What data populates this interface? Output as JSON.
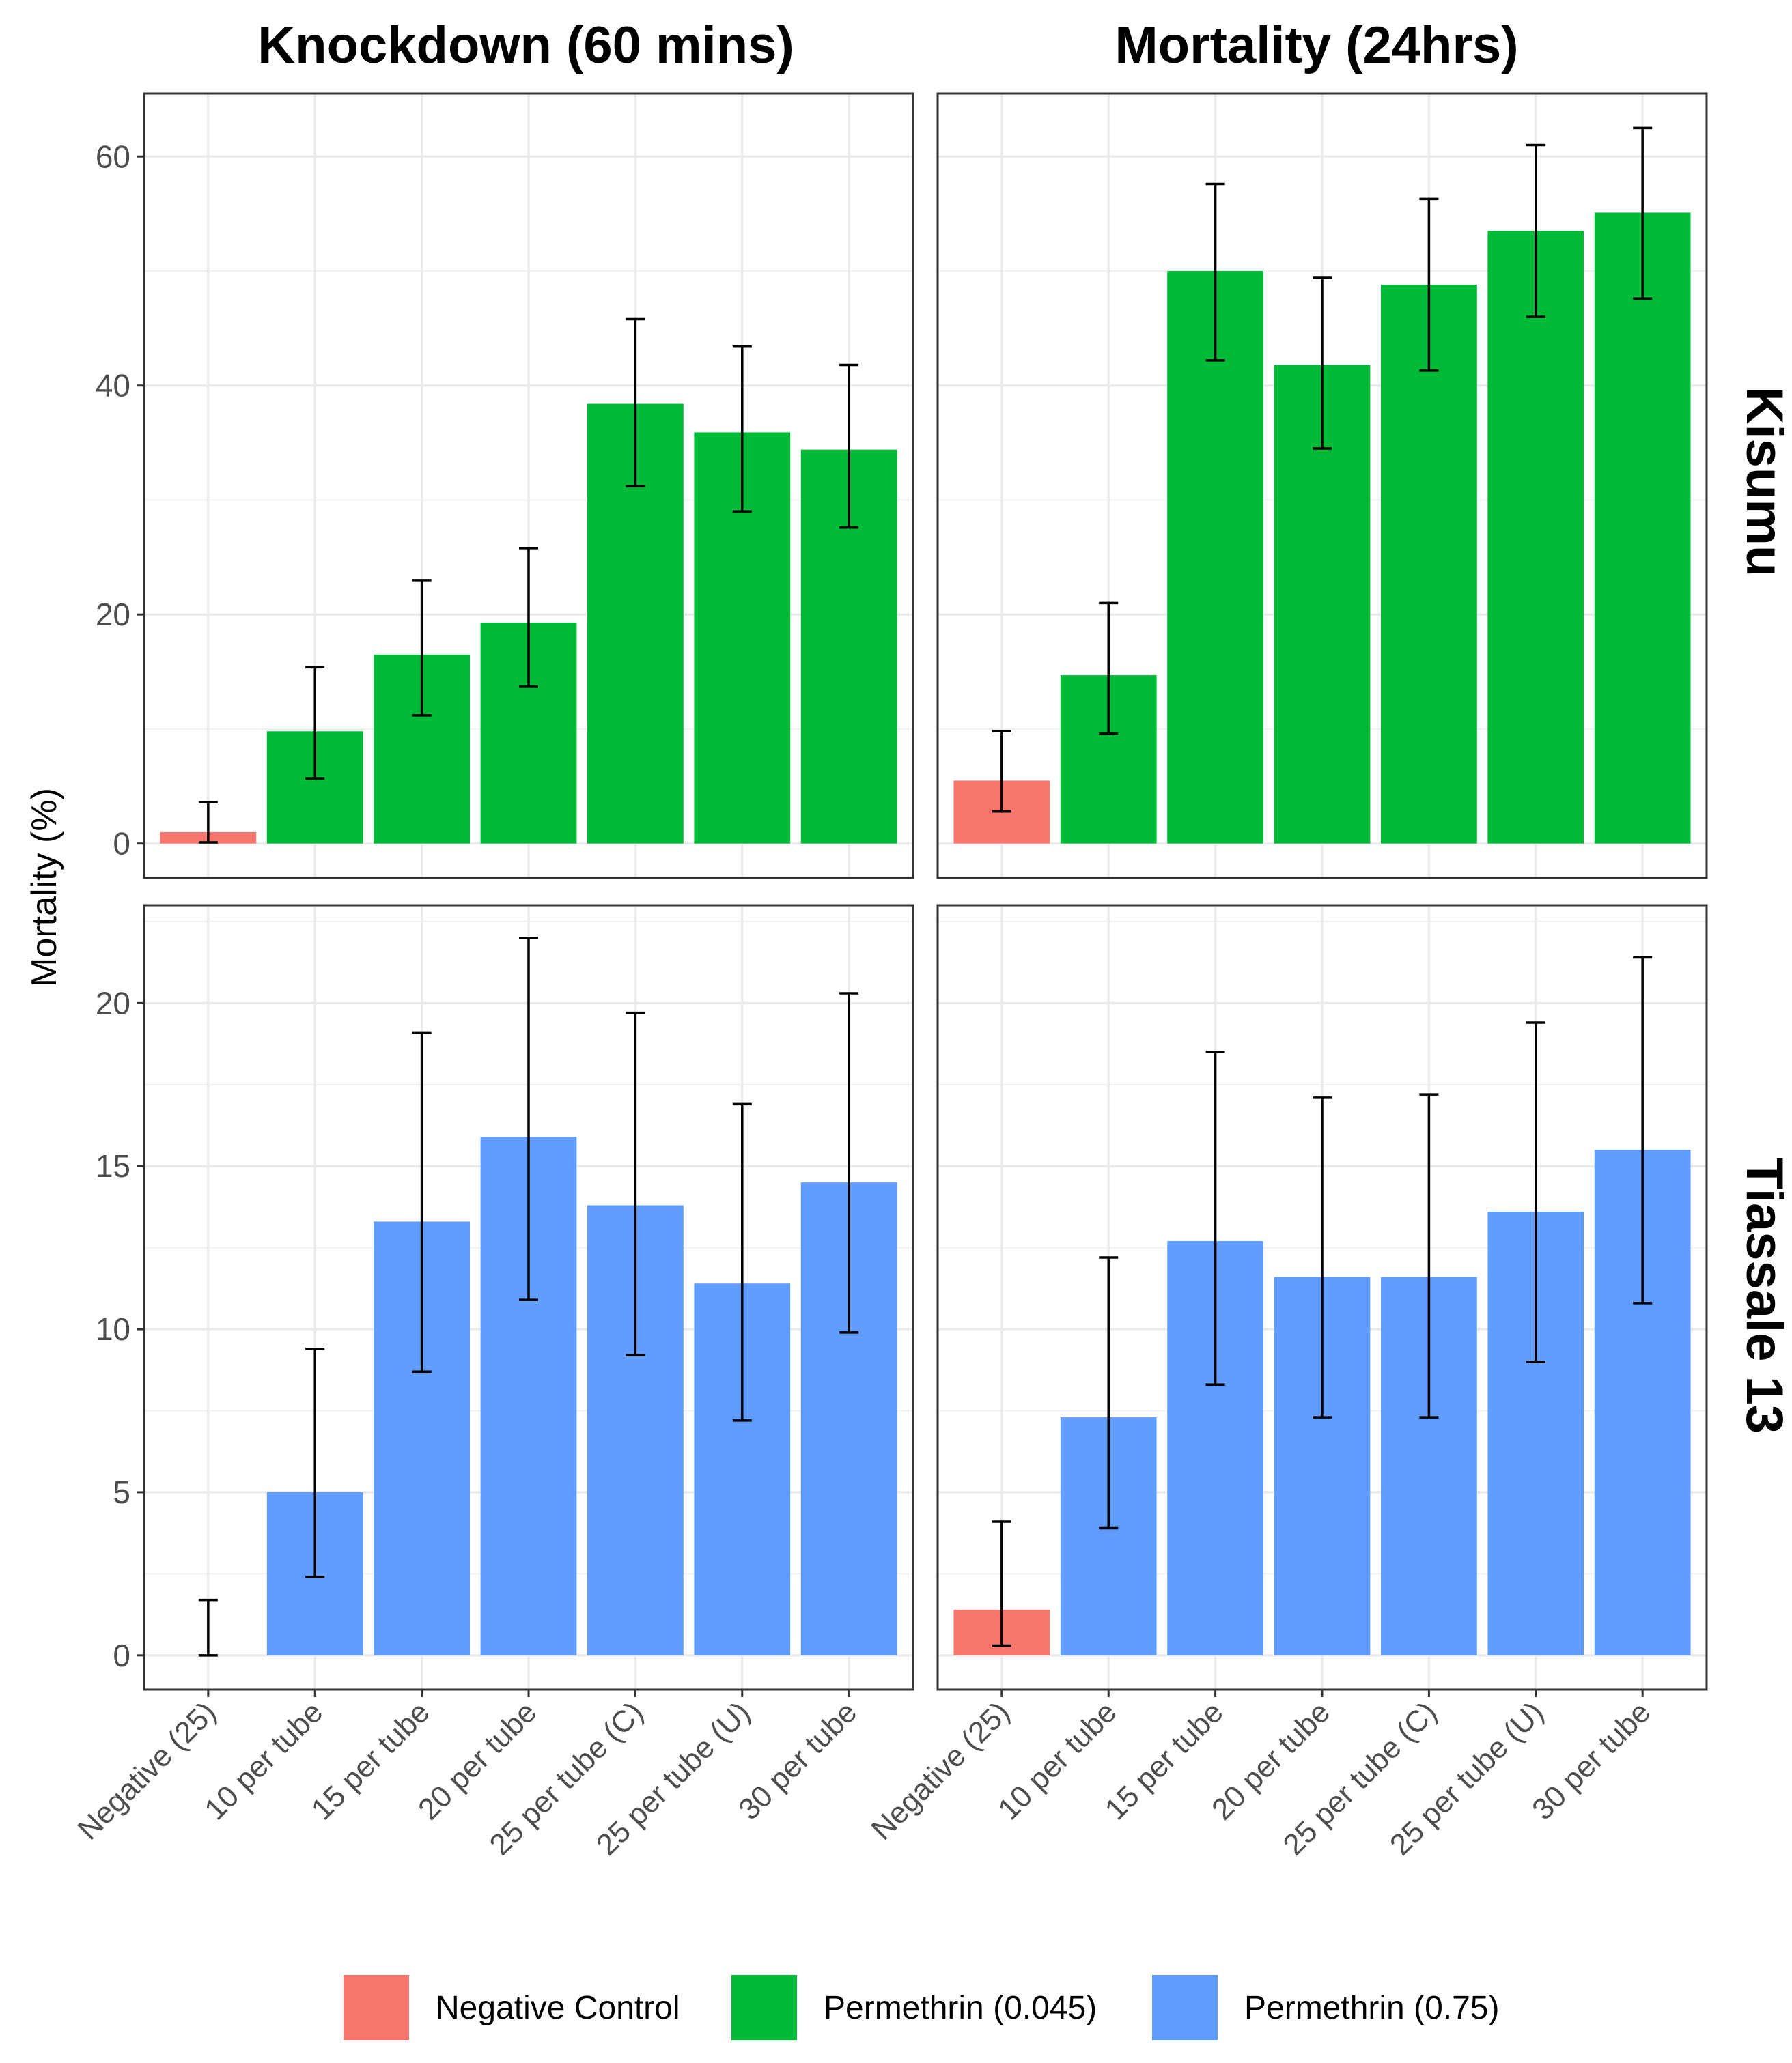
{
  "chart_data": {
    "type": "bar",
    "columns": [
      "Knockdown (60 mins)",
      "Mortality (24hrs)"
    ],
    "rows": [
      "Kisumu",
      "Tiassale 13"
    ],
    "categories": [
      "Negative (25)",
      "10 per tube",
      "15 per tube",
      "20 per tube",
      "25 per tube (C)",
      "25 per tube (U)",
      "30 per tube"
    ],
    "ylabel": "Mortality (%)",
    "xlabel": "",
    "legend": {
      "position": "bottom",
      "items": [
        {
          "label": "Negative Control",
          "color": "#F8766D"
        },
        {
          "label": "Permethrin (0.045)",
          "color": "#00BA38"
        },
        {
          "label": "Permethrin (0.75)",
          "color": "#619CFF"
        }
      ]
    },
    "panels": [
      {
        "row": "Kisumu",
        "column": "Knockdown (60 mins)",
        "ylim": [
          -3,
          65.5
        ],
        "yticks": [
          0,
          20,
          40,
          60
        ],
        "groups": [
          "Negative Control",
          "Permethrin (0.045)",
          "Permethrin (0.045)",
          "Permethrin (0.045)",
          "Permethrin (0.045)",
          "Permethrin (0.045)",
          "Permethrin (0.045)"
        ],
        "values": [
          1.0,
          9.8,
          16.5,
          19.3,
          38.4,
          35.9,
          34.4
        ],
        "lower": [
          0.1,
          5.7,
          11.2,
          13.7,
          31.2,
          29.0,
          27.6
        ],
        "upper": [
          3.6,
          15.4,
          23.0,
          25.8,
          45.8,
          43.4,
          41.8
        ]
      },
      {
        "row": "Kisumu",
        "column": "Mortality (24hrs)",
        "ylim": [
          -3,
          65.5
        ],
        "yticks": [
          0,
          20,
          40,
          60
        ],
        "groups": [
          "Negative Control",
          "Permethrin (0.045)",
          "Permethrin (0.045)",
          "Permethrin (0.045)",
          "Permethrin (0.045)",
          "Permethrin (0.045)",
          "Permethrin (0.045)"
        ],
        "values": [
          5.5,
          14.7,
          50.0,
          41.8,
          48.8,
          53.5,
          55.1
        ],
        "lower": [
          2.8,
          9.6,
          42.2,
          34.5,
          41.3,
          46.0,
          47.6
        ],
        "upper": [
          9.8,
          21.0,
          57.6,
          49.4,
          56.3,
          61.0,
          62.5
        ]
      },
      {
        "row": "Tiassale 13",
        "column": "Knockdown (60 mins)",
        "ylim": [
          -1.05,
          23.0
        ],
        "yticks": [
          0,
          5,
          10,
          15,
          20
        ],
        "groups": [
          "Negative Control",
          "Permethrin (0.75)",
          "Permethrin (0.75)",
          "Permethrin (0.75)",
          "Permethrin (0.75)",
          "Permethrin (0.75)",
          "Permethrin (0.75)"
        ],
        "values": [
          0.0,
          5.0,
          13.3,
          15.9,
          13.8,
          11.4,
          14.5
        ],
        "lower": [
          0.0,
          2.4,
          8.7,
          10.9,
          9.2,
          7.2,
          9.9
        ],
        "upper": [
          1.7,
          9.4,
          19.1,
          22.0,
          19.7,
          16.9,
          20.3
        ]
      },
      {
        "row": "Tiassale 13",
        "column": "Mortality (24hrs)",
        "ylim": [
          -1.05,
          23.0
        ],
        "yticks": [
          0,
          5,
          10,
          15,
          20
        ],
        "groups": [
          "Negative Control",
          "Permethrin (0.75)",
          "Permethrin (0.75)",
          "Permethrin (0.75)",
          "Permethrin (0.75)",
          "Permethrin (0.75)",
          "Permethrin (0.75)"
        ],
        "values": [
          1.4,
          7.3,
          12.7,
          11.6,
          11.6,
          13.6,
          15.5
        ],
        "lower": [
          0.3,
          3.9,
          8.3,
          7.3,
          7.3,
          9.0,
          10.8
        ],
        "upper": [
          4.1,
          12.2,
          18.5,
          17.1,
          17.2,
          19.4,
          21.4
        ]
      }
    ]
  }
}
